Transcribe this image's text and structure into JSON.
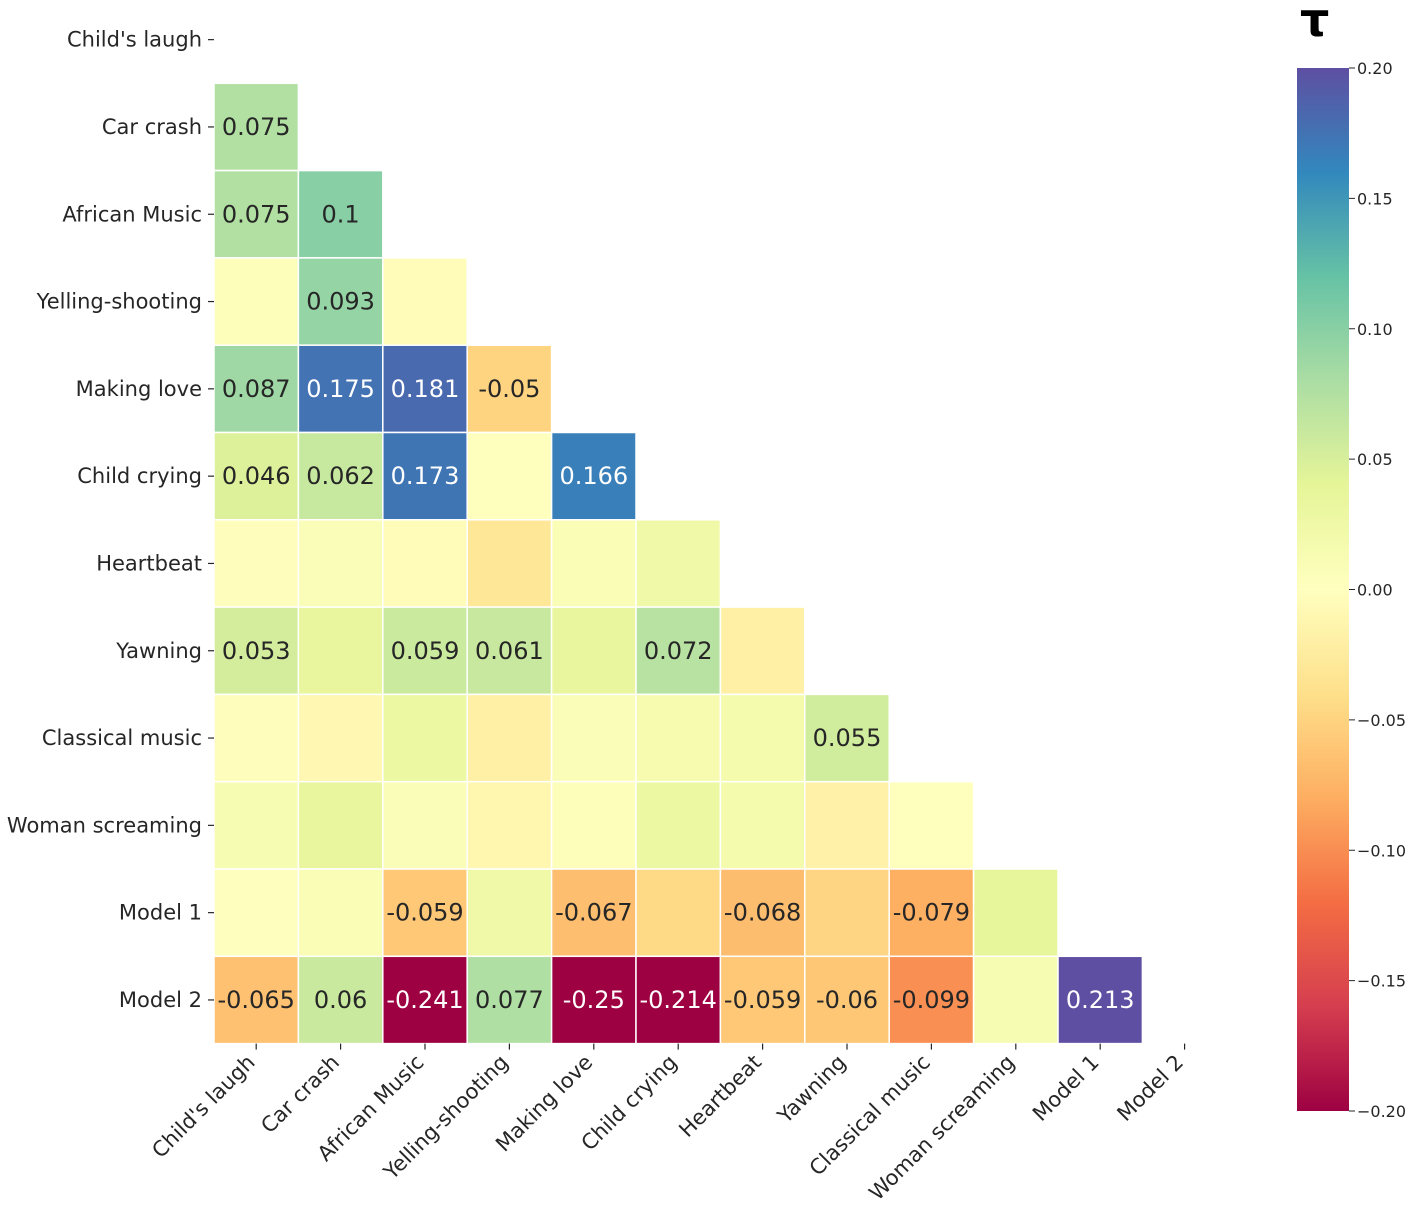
{
  "chart_data": {
    "type": "heatmap",
    "title": "",
    "xlabel": "",
    "ylabel": "",
    "mask": "lower-triangle (cells with column index < row index shown)",
    "labels": [
      "Child's laugh",
      "Car crash",
      "African Music",
      "Yelling-shooting",
      "Making love",
      "Child crying",
      "Heartbeat",
      "Yawning",
      "Classical music",
      "Woman screaming",
      "Model 1",
      "Model 2"
    ],
    "colormap": "Spectral",
    "vmin": -0.2,
    "vmax": 0.2,
    "colorbar": {
      "title": "τ",
      "ticks": [
        0.2,
        0.15,
        0.1,
        0.05,
        0.0,
        -0.05,
        -0.1,
        -0.15,
        -0.2
      ],
      "tick_labels": [
        "0.20",
        "0.15",
        "0.10",
        "0.05",
        "0.00",
        "−0.05",
        "−0.10",
        "−0.15",
        "−0.20"
      ]
    },
    "cells": [
      {
        "row": 1,
        "col": 0,
        "value": 0.075,
        "label": "0.075"
      },
      {
        "row": 2,
        "col": 0,
        "value": 0.075,
        "label": "0.075"
      },
      {
        "row": 2,
        "col": 1,
        "value": 0.1,
        "label": "0.1"
      },
      {
        "row": 3,
        "col": 0,
        "value": 0.005,
        "label": ""
      },
      {
        "row": 3,
        "col": 1,
        "value": 0.093,
        "label": "0.093"
      },
      {
        "row": 3,
        "col": 2,
        "value": -0.005,
        "label": ""
      },
      {
        "row": 4,
        "col": 0,
        "value": 0.087,
        "label": "0.087"
      },
      {
        "row": 4,
        "col": 1,
        "value": 0.175,
        "label": "0.175"
      },
      {
        "row": 4,
        "col": 2,
        "value": 0.181,
        "label": "0.181"
      },
      {
        "row": 4,
        "col": 3,
        "value": -0.05,
        "label": "-0.05"
      },
      {
        "row": 5,
        "col": 0,
        "value": 0.046,
        "label": "0.046"
      },
      {
        "row": 5,
        "col": 1,
        "value": 0.062,
        "label": "0.062"
      },
      {
        "row": 5,
        "col": 2,
        "value": 0.173,
        "label": "0.173"
      },
      {
        "row": 5,
        "col": 3,
        "value": 0.002,
        "label": ""
      },
      {
        "row": 5,
        "col": 4,
        "value": 0.166,
        "label": "0.166"
      },
      {
        "row": 6,
        "col": 0,
        "value": -0.003,
        "label": ""
      },
      {
        "row": 6,
        "col": 1,
        "value": 0.008,
        "label": ""
      },
      {
        "row": 6,
        "col": 2,
        "value": -0.005,
        "label": ""
      },
      {
        "row": 6,
        "col": 3,
        "value": -0.03,
        "label": ""
      },
      {
        "row": 6,
        "col": 4,
        "value": 0.01,
        "label": ""
      },
      {
        "row": 6,
        "col": 5,
        "value": 0.025,
        "label": ""
      },
      {
        "row": 7,
        "col": 0,
        "value": 0.053,
        "label": "0.053"
      },
      {
        "row": 7,
        "col": 1,
        "value": 0.035,
        "label": ""
      },
      {
        "row": 7,
        "col": 2,
        "value": 0.059,
        "label": "0.059"
      },
      {
        "row": 7,
        "col": 3,
        "value": 0.061,
        "label": "0.061"
      },
      {
        "row": 7,
        "col": 4,
        "value": 0.035,
        "label": ""
      },
      {
        "row": 7,
        "col": 5,
        "value": 0.072,
        "label": "0.072"
      },
      {
        "row": 7,
        "col": 6,
        "value": -0.02,
        "label": ""
      },
      {
        "row": 8,
        "col": 0,
        "value": -0.002,
        "label": ""
      },
      {
        "row": 8,
        "col": 1,
        "value": -0.01,
        "label": ""
      },
      {
        "row": 8,
        "col": 2,
        "value": 0.03,
        "label": ""
      },
      {
        "row": 8,
        "col": 3,
        "value": -0.02,
        "label": ""
      },
      {
        "row": 8,
        "col": 4,
        "value": 0.008,
        "label": ""
      },
      {
        "row": 8,
        "col": 5,
        "value": 0.015,
        "label": ""
      },
      {
        "row": 8,
        "col": 6,
        "value": 0.018,
        "label": ""
      },
      {
        "row": 8,
        "col": 7,
        "value": 0.055,
        "label": "0.055"
      },
      {
        "row": 9,
        "col": 0,
        "value": 0.012,
        "label": ""
      },
      {
        "row": 9,
        "col": 1,
        "value": 0.035,
        "label": ""
      },
      {
        "row": 9,
        "col": 2,
        "value": 0.008,
        "label": ""
      },
      {
        "row": 9,
        "col": 3,
        "value": -0.012,
        "label": ""
      },
      {
        "row": 9,
        "col": 4,
        "value": 0.005,
        "label": ""
      },
      {
        "row": 9,
        "col": 5,
        "value": 0.03,
        "label": ""
      },
      {
        "row": 9,
        "col": 6,
        "value": 0.018,
        "label": ""
      },
      {
        "row": 9,
        "col": 7,
        "value": -0.018,
        "label": ""
      },
      {
        "row": 9,
        "col": 8,
        "value": 0.002,
        "label": ""
      },
      {
        "row": 10,
        "col": 0,
        "value": 0.001,
        "label": ""
      },
      {
        "row": 10,
        "col": 1,
        "value": 0.01,
        "label": ""
      },
      {
        "row": 10,
        "col": 2,
        "value": -0.059,
        "label": "-0.059"
      },
      {
        "row": 10,
        "col": 3,
        "value": 0.025,
        "label": ""
      },
      {
        "row": 10,
        "col": 4,
        "value": -0.067,
        "label": "-0.067"
      },
      {
        "row": 10,
        "col": 5,
        "value": -0.045,
        "label": ""
      },
      {
        "row": 10,
        "col": 6,
        "value": -0.068,
        "label": "-0.068"
      },
      {
        "row": 10,
        "col": 7,
        "value": -0.048,
        "label": ""
      },
      {
        "row": 10,
        "col": 8,
        "value": -0.079,
        "label": "-0.079"
      },
      {
        "row": 10,
        "col": 9,
        "value": 0.038,
        "label": ""
      },
      {
        "row": 11,
        "col": 0,
        "value": -0.065,
        "label": "-0.065"
      },
      {
        "row": 11,
        "col": 1,
        "value": 0.06,
        "label": "0.06"
      },
      {
        "row": 11,
        "col": 2,
        "value": -0.241,
        "label": "-0.241"
      },
      {
        "row": 11,
        "col": 3,
        "value": 0.077,
        "label": "0.077"
      },
      {
        "row": 11,
        "col": 4,
        "value": -0.25,
        "label": "-0.25"
      },
      {
        "row": 11,
        "col": 5,
        "value": -0.214,
        "label": "-0.214"
      },
      {
        "row": 11,
        "col": 6,
        "value": -0.059,
        "label": "-0.059"
      },
      {
        "row": 11,
        "col": 7,
        "value": -0.06,
        "label": "-0.06"
      },
      {
        "row": 11,
        "col": 8,
        "value": -0.099,
        "label": "-0.099"
      },
      {
        "row": 11,
        "col": 9,
        "value": 0.012,
        "label": ""
      },
      {
        "row": 11,
        "col": 10,
        "value": 0.213,
        "label": "0.213"
      }
    ]
  }
}
